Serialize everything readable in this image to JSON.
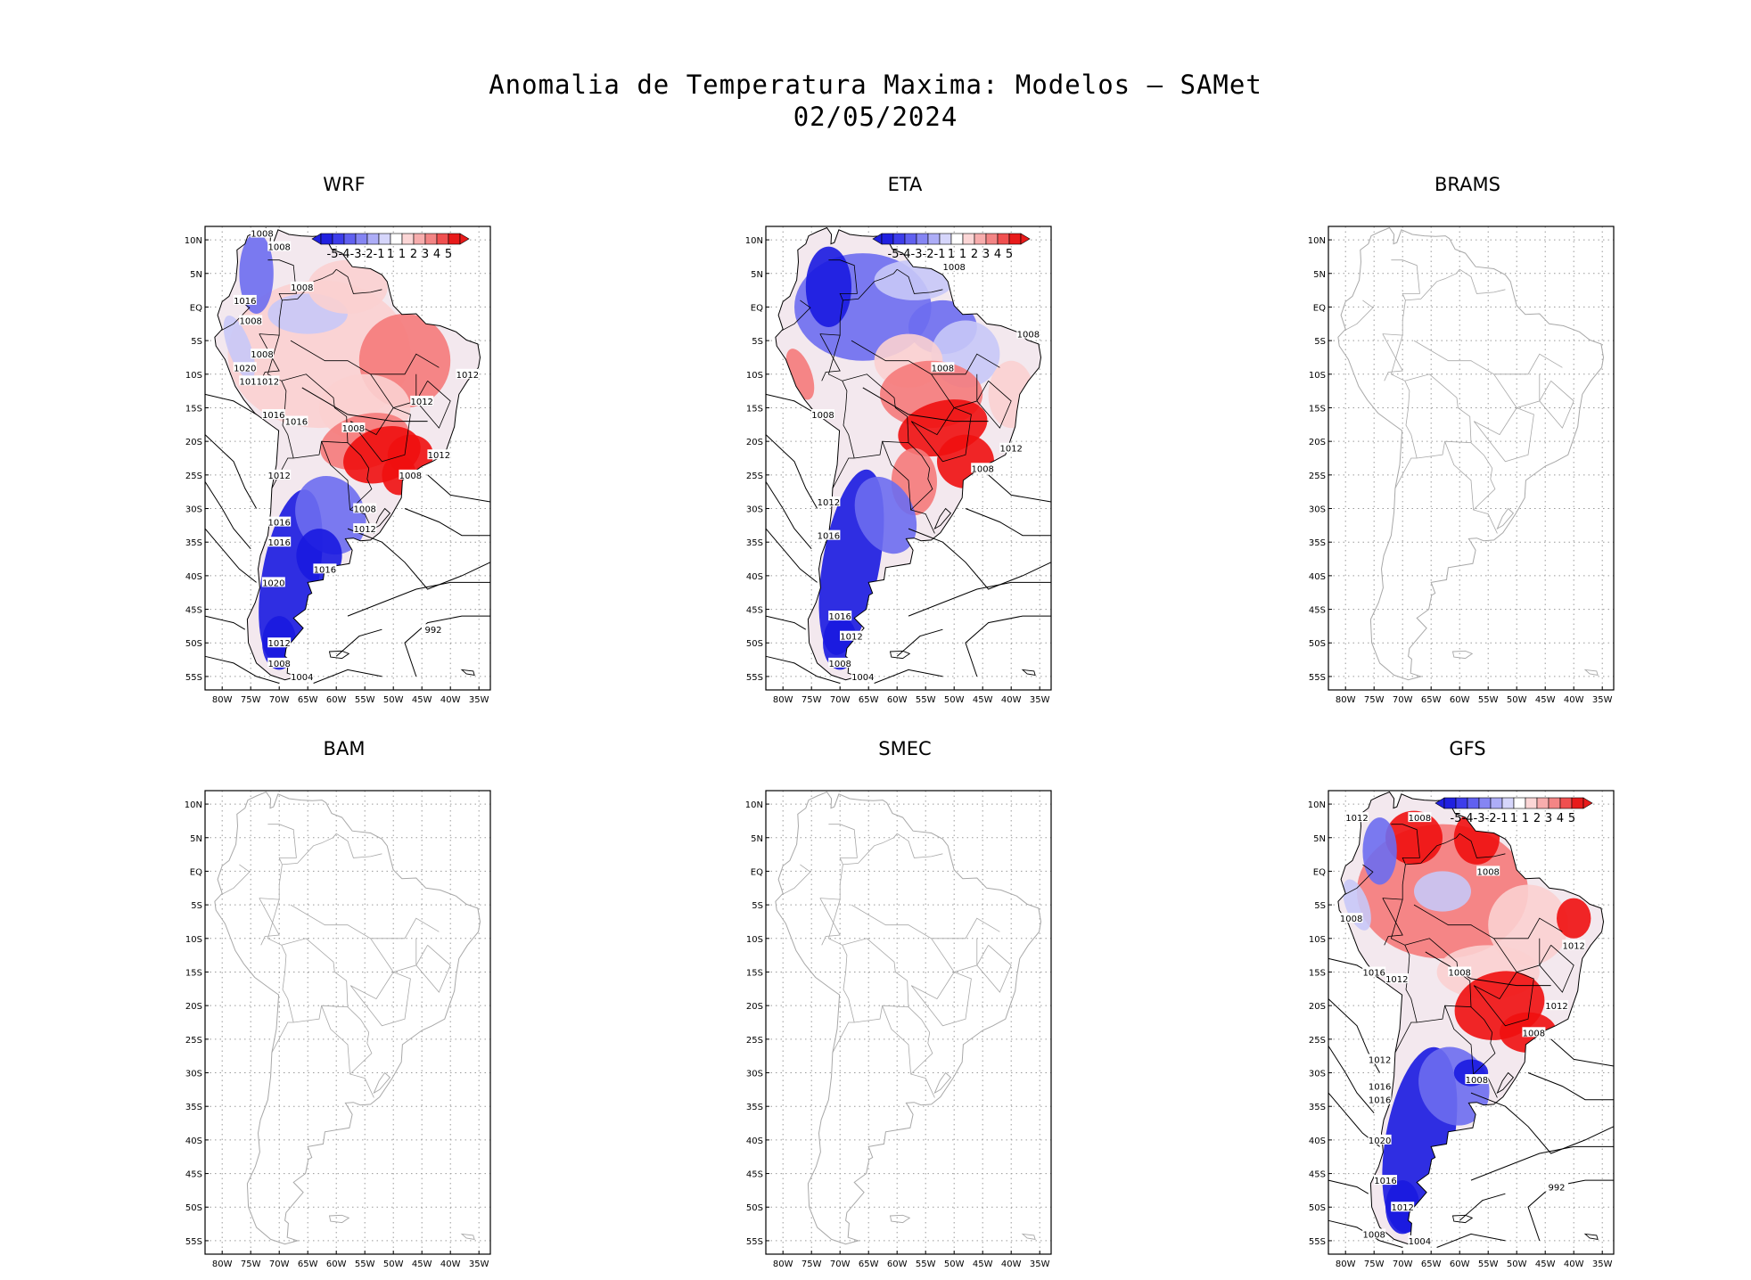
{
  "title": {
    "line1": "Anomalia de Temperatura Maxima: Modelos — SAMet",
    "line2": "02/05/2024"
  },
  "colors": {
    "warm_strong": "#f01010",
    "warm_mid": "#f57a7a",
    "warm_light": "#fbd0d0",
    "cold_strong": "#1a1ae0",
    "cold_mid": "#6d6df0",
    "cold_light": "#c8c8f7",
    "coast_empty": "#a8a8a8",
    "coast_filled": "#000000",
    "grid": "#9a9a9a"
  },
  "axes": {
    "lat_labels": [
      "10N",
      "5N",
      "EQ",
      "5S",
      "10S",
      "15S",
      "20S",
      "25S",
      "30S",
      "35S",
      "40S",
      "45S",
      "50S",
      "55S"
    ],
    "lon_labels": [
      "80W",
      "75W",
      "70W",
      "65W",
      "60W",
      "55W",
      "50W",
      "45W",
      "40W",
      "35W"
    ]
  },
  "colorbar": {
    "labels": [
      "-5",
      "-4",
      "-3",
      "-2",
      "-1",
      "1",
      "1",
      "2",
      "3",
      "4",
      "5"
    ]
  },
  "panels": [
    {
      "name": "WRF",
      "has_data": true,
      "isobars": [
        {
          "label": "1008",
          "lon": -73,
          "lat": 11
        },
        {
          "label": "1008",
          "lon": -70,
          "lat": 9
        },
        {
          "label": "1008",
          "lon": -66,
          "lat": 3
        },
        {
          "label": "1016",
          "lon": -76,
          "lat": 1
        },
        {
          "label": "1008",
          "lon": -75,
          "lat": -2
        },
        {
          "label": "1008",
          "lon": -73,
          "lat": -7
        },
        {
          "label": "1020",
          "lon": -76,
          "lat": -9
        },
        {
          "label": "1016",
          "lon": -75,
          "lat": -11
        },
        {
          "label": "1012",
          "lon": -72,
          "lat": -11
        },
        {
          "label": "1016",
          "lon": -71,
          "lat": -16
        },
        {
          "label": "1016",
          "lon": -67,
          "lat": -17
        },
        {
          "label": "1008",
          "lon": -57,
          "lat": -18
        },
        {
          "label": "1012",
          "lon": -45,
          "lat": -14
        },
        {
          "label": "1012",
          "lon": -37,
          "lat": -10
        },
        {
          "label": "1012",
          "lon": -42,
          "lat": -22
        },
        {
          "label": "1008",
          "lon": -47,
          "lat": -25
        },
        {
          "label": "1012",
          "lon": -70,
          "lat": -25
        },
        {
          "label": "1008",
          "lon": -55,
          "lat": -30
        },
        {
          "label": "1012",
          "lon": -55,
          "lat": -33
        },
        {
          "label": "1016",
          "lon": -70,
          "lat": -32
        },
        {
          "label": "1016",
          "lon": -70,
          "lat": -35
        },
        {
          "label": "1016",
          "lon": -62,
          "lat": -39
        },
        {
          "label": "1020",
          "lon": -71,
          "lat": -41
        },
        {
          "label": "1012",
          "lon": -70,
          "lat": -50
        },
        {
          "label": "992",
          "lon": -43,
          "lat": -48
        },
        {
          "label": "1008",
          "lon": -70,
          "lat": -53
        },
        {
          "label": "1004",
          "lon": -66,
          "lat": -55
        }
      ]
    },
    {
      "name": "ETA",
      "has_data": true,
      "isobars": [
        {
          "label": "1008",
          "lon": -50,
          "lat": 6
        },
        {
          "label": "1008",
          "lon": -37,
          "lat": -4
        },
        {
          "label": "1008",
          "lon": -52,
          "lat": -9
        },
        {
          "label": "1008",
          "lon": -73,
          "lat": -16
        },
        {
          "label": "1012",
          "lon": -40,
          "lat": -21
        },
        {
          "label": "1008",
          "lon": -45,
          "lat": -24
        },
        {
          "label": "1012",
          "lon": -72,
          "lat": -29
        },
        {
          "label": "1016",
          "lon": -72,
          "lat": -34
        },
        {
          "label": "1016",
          "lon": -70,
          "lat": -46
        },
        {
          "label": "1012",
          "lon": -68,
          "lat": -49
        },
        {
          "label": "1008",
          "lon": -70,
          "lat": -53
        },
        {
          "label": "1004",
          "lon": -66,
          "lat": -55
        }
      ]
    },
    {
      "name": "BRAMS",
      "has_data": false,
      "isobars": []
    },
    {
      "name": "BAM",
      "has_data": false,
      "isobars": []
    },
    {
      "name": "SMEC",
      "has_data": false,
      "isobars": []
    },
    {
      "name": "GFS",
      "has_data": true,
      "isobars": [
        {
          "label": "1012",
          "lon": -78,
          "lat": 8
        },
        {
          "label": "1008",
          "lon": -67,
          "lat": 8
        },
        {
          "label": "1008",
          "lon": -55,
          "lat": 0
        },
        {
          "label": "1008",
          "lon": -79,
          "lat": -7
        },
        {
          "label": "1012",
          "lon": -40,
          "lat": -11
        },
        {
          "label": "1016",
          "lon": -75,
          "lat": -15
        },
        {
          "label": "1012",
          "lon": -71,
          "lat": -16
        },
        {
          "label": "1008",
          "lon": -60,
          "lat": -15
        },
        {
          "label": "1012",
          "lon": -43,
          "lat": -20
        },
        {
          "label": "1008",
          "lon": -47,
          "lat": -24
        },
        {
          "label": "1012",
          "lon": -74,
          "lat": -28
        },
        {
          "label": "1008",
          "lon": -57,
          "lat": -31
        },
        {
          "label": "1016",
          "lon": -74,
          "lat": -32
        },
        {
          "label": "1016",
          "lon": -74,
          "lat": -34
        },
        {
          "label": "1020",
          "lon": -74,
          "lat": -40
        },
        {
          "label": "1016",
          "lon": -73,
          "lat": -46
        },
        {
          "label": "1012",
          "lon": -70,
          "lat": -50
        },
        {
          "label": "992",
          "lon": -43,
          "lat": -47
        },
        {
          "label": "1008",
          "lon": -75,
          "lat": -54
        },
        {
          "label": "1004",
          "lon": -67,
          "lat": -55
        }
      ]
    }
  ]
}
